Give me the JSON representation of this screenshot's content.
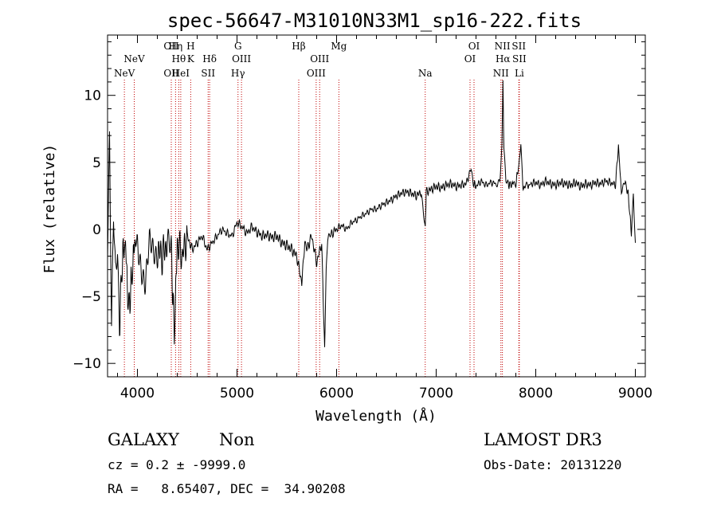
{
  "chart_data": {
    "type": "line",
    "title": "spec-56647-M31010N33M1_sp16-222.fits",
    "xlabel": "Wavelength (Å)",
    "ylabel": "Flux (relative)",
    "xlim": [
      3700,
      9100
    ],
    "ylim": [
      -11,
      14.5
    ],
    "xticks": [
      4000,
      5000,
      6000,
      7000,
      8000,
      9000
    ],
    "yticks": [
      -10,
      -5,
      0,
      5,
      10
    ],
    "series": [
      {
        "name": "spectrum",
        "x": [
          3700,
          3720,
          3740,
          3760,
          3780,
          3800,
          3820,
          3850,
          3880,
          3910,
          3940,
          3970,
          4000,
          4040,
          4080,
          4120,
          4160,
          4200,
          4250,
          4300,
          4340,
          4370,
          4400,
          4450,
          4500,
          4550,
          4600,
          4650,
          4700,
          4750,
          4800,
          4850,
          4900,
          4950,
          5000,
          5050,
          5100,
          5150,
          5200,
          5250,
          5300,
          5350,
          5400,
          5450,
          5500,
          5550,
          5600,
          5650,
          5680,
          5700,
          5750,
          5800,
          5850,
          5880,
          5895,
          5910,
          5950,
          6000,
          6050,
          6100,
          6150,
          6200,
          6250,
          6300,
          6350,
          6400,
          6450,
          6500,
          6550,
          6600,
          6650,
          6700,
          6750,
          6800,
          6850,
          6890,
          6900,
          6950,
          7000,
          7050,
          7100,
          7150,
          7200,
          7250,
          7300,
          7350,
          7370,
          7400,
          7450,
          7500,
          7550,
          7600,
          7640,
          7660,
          7670,
          7680,
          7700,
          7720,
          7750,
          7780,
          7800,
          7830,
          7850,
          7870,
          7900,
          7920,
          7950,
          8000,
          8050,
          8100,
          8150,
          8200,
          8250,
          8300,
          8350,
          8400,
          8450,
          8500,
          8550,
          8600,
          8650,
          8700,
          8750,
          8800,
          8830,
          8860,
          8900,
          8930,
          8960,
          8980,
          9000
        ],
        "values": [
          -2,
          6,
          -8,
          1,
          -3,
          -1,
          -7,
          -2,
          -1,
          -6,
          -4,
          -1,
          -1,
          -2.5,
          -4,
          -1.5,
          -2,
          -1.5,
          -2,
          -1,
          -1.5,
          -8,
          -1,
          -2,
          -0.5,
          -1.5,
          -1,
          -0.5,
          -1.5,
          -1,
          -0.5,
          0,
          -0.3,
          -0.5,
          0.5,
          0.2,
          -0.3,
          0.2,
          -0.2,
          -0.5,
          -0.4,
          -0.6,
          -0.5,
          -1,
          -1.2,
          -1.5,
          -2,
          -4,
          -1,
          -1.5,
          -0.5,
          -2.5,
          -1,
          -9,
          -3,
          -0.8,
          -0.3,
          0,
          0.3,
          0,
          0.5,
          0.7,
          1,
          1.2,
          1.5,
          1.5,
          1.8,
          2,
          2.2,
          2.5,
          2.7,
          2.8,
          2.7,
          2.5,
          2.8,
          0,
          2.8,
          3,
          3.2,
          3.1,
          3.3,
          3.4,
          3.2,
          3.3,
          3.4,
          4.5,
          3.5,
          3.2,
          3.6,
          3.3,
          3.5,
          3.4,
          3.8,
          6,
          11,
          6,
          3.5,
          3.4,
          3.3,
          3.5,
          3.4,
          4.8,
          6.5,
          3,
          3.3,
          3.2,
          3.4,
          3.5,
          3.3,
          3.6,
          3.4,
          3.3,
          3.5,
          3.4,
          3.3,
          3.5,
          3.2,
          3.4,
          3.3,
          3.5,
          3.4,
          3.6,
          3.5,
          3.3,
          6.2,
          2.8,
          3.5,
          2.5,
          -0.3,
          2.8,
          -1
        ]
      }
    ],
    "lines": [
      {
        "wl": 3869,
        "label": "NeV",
        "row": 3
      },
      {
        "wl": 3968,
        "label": "NeV",
        "row": 2
      },
      {
        "wl": 4340,
        "label": "OII",
        "row": 3
      },
      {
        "wl": 4340,
        "label": "OII",
        "row": 1
      },
      {
        "wl": 4383,
        "label": "Hη",
        "row": 1
      },
      {
        "wl": 4415,
        "label": "Hθ",
        "row": 2
      },
      {
        "wl": 4435,
        "label": "HeI",
        "row": 3
      },
      {
        "wl": 4535,
        "label": "H",
        "row": 1
      },
      {
        "wl": 4535,
        "label": "K",
        "row": 2
      },
      {
        "wl": 4725,
        "label": "Hδ",
        "row": 2
      },
      {
        "wl": 4710,
        "label": "SII",
        "row": 3
      },
      {
        "wl": 5010,
        "label": "G",
        "row": 1
      },
      {
        "wl": 5045,
        "label": "OIII",
        "row": 2
      },
      {
        "wl": 5010,
        "label": "Hγ",
        "row": 3
      },
      {
        "wl": 5620,
        "label": "Hβ",
        "row": 1
      },
      {
        "wl": 5830,
        "label": "OIII",
        "row": 2
      },
      {
        "wl": 5795,
        "label": "OIII",
        "row": 3
      },
      {
        "wl": 6023,
        "label": "Mg",
        "row": 1
      },
      {
        "wl": 6890,
        "label": "Na",
        "row": 3
      },
      {
        "wl": 7380,
        "label": "OI",
        "row": 1
      },
      {
        "wl": 7340,
        "label": "OI",
        "row": 2
      },
      {
        "wl": 7665,
        "label": "NII",
        "row": 1
      },
      {
        "wl": 7670,
        "label": "Hα",
        "row": 2
      },
      {
        "wl": 7650,
        "label": "NII",
        "row": 3
      },
      {
        "wl": 7830,
        "label": "SII",
        "row": 1
      },
      {
        "wl": 7835,
        "label": "SII",
        "row": 2
      },
      {
        "wl": 7835,
        "label": "Li",
        "row": 3
      }
    ]
  },
  "footer": {
    "classification": "GALAXY",
    "subclass": "Non",
    "survey": "LAMOST DR3",
    "cz": "cz = 0.2 ± -9999.0",
    "obs_date": "Obs-Date: 20131220",
    "coords": "RA =   8.65407, DEC =  34.90208"
  },
  "colors": {
    "spectrum": "#000000",
    "line_marker": "#c00000",
    "axis": "#000000"
  }
}
